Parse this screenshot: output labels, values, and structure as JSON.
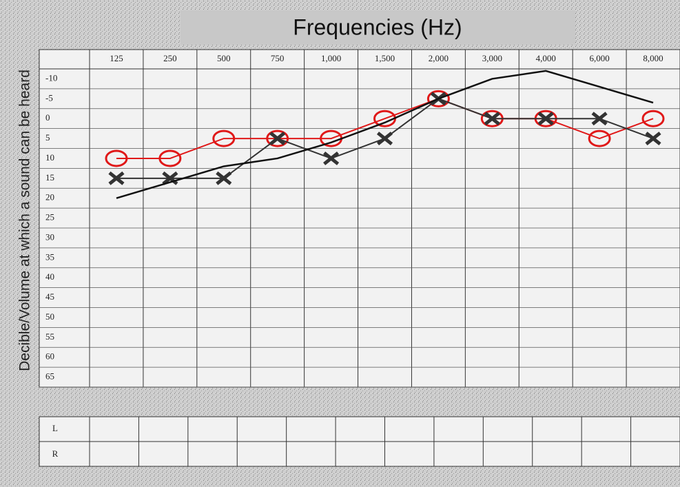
{
  "chart_data": {
    "type": "line",
    "title": "Frequencies (Hz)",
    "y_label": "Decible/Volume at which a sound can be heard",
    "categories": [
      "125",
      "250",
      "500",
      "750",
      "1,000",
      "1,500",
      "2,000",
      "3,000",
      "4,000",
      "6,000",
      "8,000"
    ],
    "ylim": [
      -10,
      65
    ],
    "y_inverted": true,
    "yticks": [
      -10,
      -5,
      0,
      5,
      10,
      15,
      20,
      25,
      30,
      35,
      40,
      45,
      50,
      55,
      60,
      65
    ],
    "series": [
      {
        "color": "#e01818",
        "marker": "o",
        "values": [
          10,
          10,
          5,
          5,
          5,
          0,
          -5,
          0,
          0,
          5,
          0
        ]
      },
      {
        "color": "#333333",
        "marker": "x",
        "values": [
          15,
          15,
          15,
          5,
          10,
          5,
          -5,
          0,
          0,
          0,
          5
        ]
      },
      {
        "color": "#111111",
        "marker": "none",
        "values": [
          20,
          16,
          12,
          10,
          6,
          1,
          -5,
          -10,
          -12,
          -8,
          -4
        ]
      }
    ]
  },
  "bottom_table": {
    "row_labels": [
      "L",
      "R"
    ]
  }
}
